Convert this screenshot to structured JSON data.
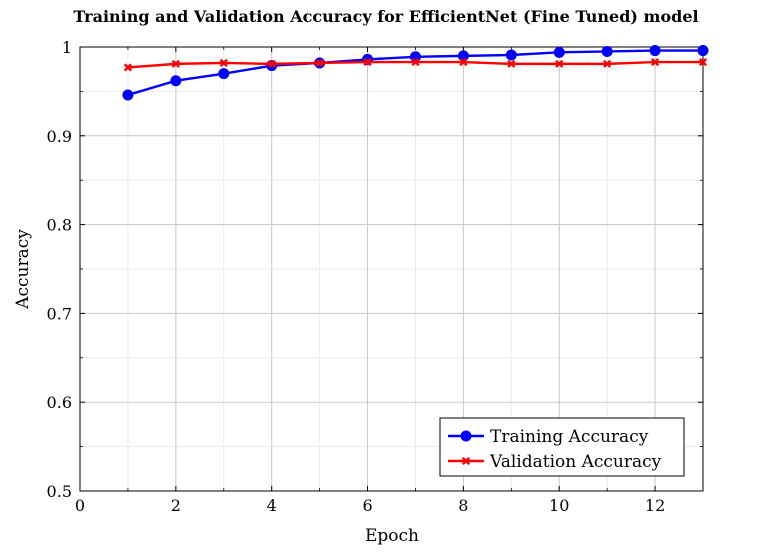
{
  "chart_data": {
    "type": "line",
    "title": "Training and Validation Accuracy for EfficientNet (Fine Tuned) model",
    "xlabel": "Epoch",
    "ylabel": "Accuracy",
    "xlim": [
      0,
      13
    ],
    "ylim": [
      0.5,
      1.0
    ],
    "xticks": [
      0,
      2,
      4,
      6,
      8,
      10,
      12
    ],
    "xtick_labels": [
      "0",
      "2",
      "4",
      "6",
      "8",
      "10",
      "12"
    ],
    "yticks": [
      0.5,
      0.6,
      0.7,
      0.8,
      0.9,
      1.0
    ],
    "ytick_labels": [
      "0.5",
      "0.6",
      "0.7",
      "0.8",
      "0.9",
      "1"
    ],
    "grid": true,
    "legend_position": "bottom-right",
    "x": [
      1,
      2,
      3,
      4,
      5,
      6,
      7,
      8,
      9,
      10,
      11,
      12,
      13
    ],
    "series": [
      {
        "name": "Training Accuracy",
        "color": "#0000ff",
        "marker": "circle",
        "values": [
          0.946,
          0.962,
          0.97,
          0.979,
          0.982,
          0.986,
          0.989,
          0.99,
          0.991,
          0.994,
          0.995,
          0.996,
          0.996
        ]
      },
      {
        "name": "Validation Accuracy",
        "color": "#ff0000",
        "marker": "x",
        "values": [
          0.977,
          0.981,
          0.982,
          0.981,
          0.982,
          0.983,
          0.983,
          0.983,
          0.981,
          0.981,
          0.981,
          0.983,
          0.983
        ]
      }
    ]
  }
}
